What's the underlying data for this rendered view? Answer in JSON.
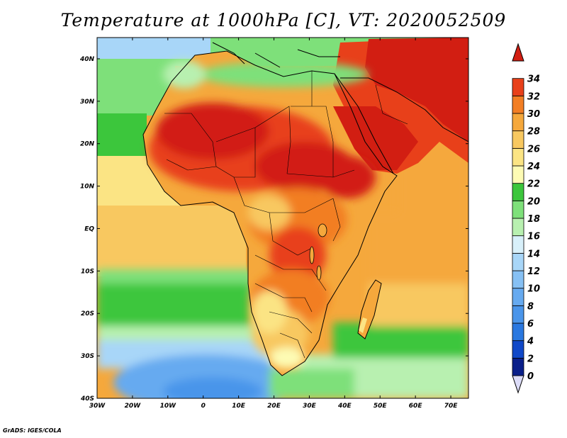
{
  "title": "Temperature at 1000hPa [C], VT: 2020052509",
  "credit": "GrADS: IGES/COLA",
  "map": {
    "lon_range": [
      -30,
      75
    ],
    "lat_range": [
      -40,
      45
    ],
    "lon_ticks": [
      {
        "value": -30,
        "label": "30W"
      },
      {
        "value": -20,
        "label": "20W"
      },
      {
        "value": -10,
        "label": "10W"
      },
      {
        "value": 0,
        "label": "0"
      },
      {
        "value": 10,
        "label": "10E"
      },
      {
        "value": 20,
        "label": "20E"
      },
      {
        "value": 30,
        "label": "30E"
      },
      {
        "value": 40,
        "label": "40E"
      },
      {
        "value": 50,
        "label": "50E"
      },
      {
        "value": 60,
        "label": "60E"
      },
      {
        "value": 70,
        "label": "70E"
      }
    ],
    "lat_ticks": [
      {
        "value": 40,
        "label": "40N"
      },
      {
        "value": 30,
        "label": "30N"
      },
      {
        "value": 20,
        "label": "20N"
      },
      {
        "value": 10,
        "label": "10N"
      },
      {
        "value": 0,
        "label": "EQ"
      },
      {
        "value": -10,
        "label": "10S"
      },
      {
        "value": -20,
        "label": "20S"
      },
      {
        "value": -30,
        "label": "30S"
      },
      {
        "value": -40,
        "label": "40S"
      }
    ]
  },
  "colorbar": {
    "levels": [
      "0",
      "2",
      "4",
      "6",
      "8",
      "10",
      "12",
      "14",
      "16",
      "18",
      "20",
      "22",
      "24",
      "26",
      "28",
      "30",
      "32",
      "34"
    ],
    "colors": [
      "#0a1f8a",
      "#1048c8",
      "#2a78e0",
      "#4a95ea",
      "#66aaf0",
      "#86c0f4",
      "#a8d6f8",
      "#d8f0fa",
      "#b8f0b0",
      "#7ee07a",
      "#3cc63c",
      "#fdfbb4",
      "#fbe484",
      "#f8c860",
      "#f5a83c",
      "#f27e24",
      "#e8401a",
      "#d21e12"
    ],
    "below_color": "#dcdcf8"
  }
}
